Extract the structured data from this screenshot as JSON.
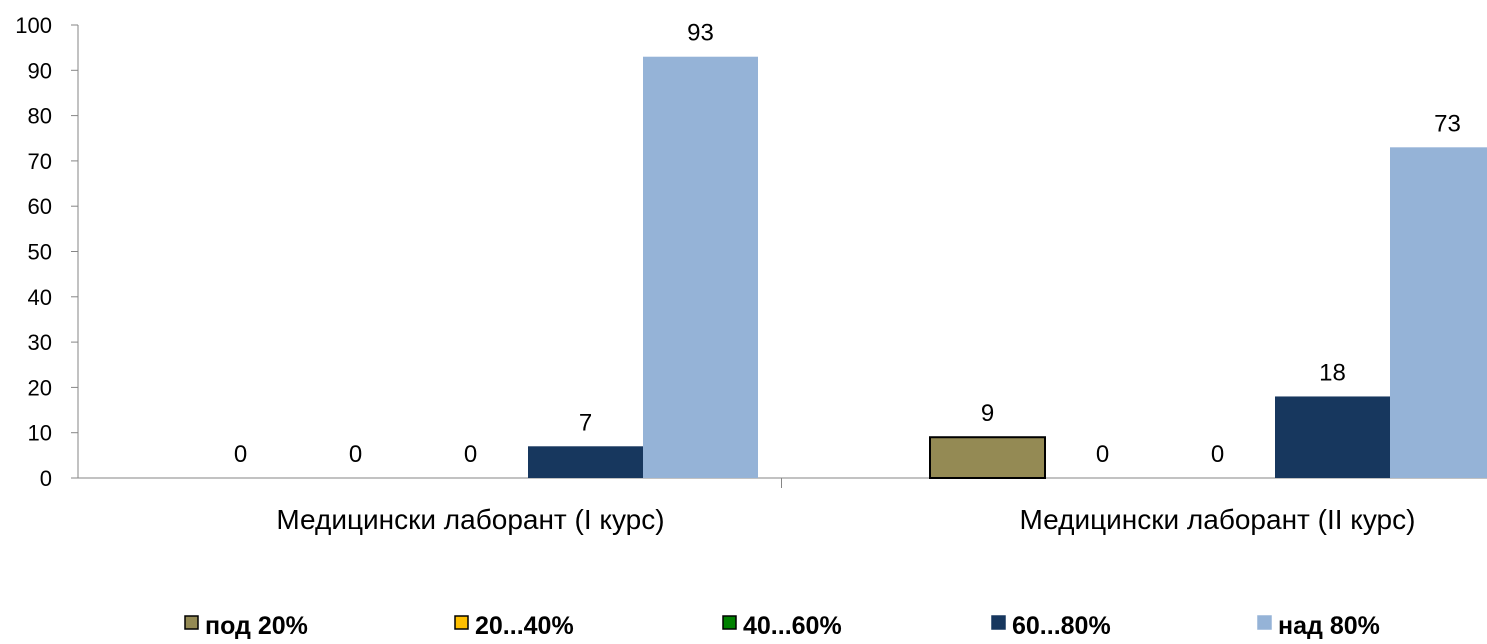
{
  "chart_data": {
    "type": "bar",
    "categories": [
      "Медицински лаборант (I курс)",
      "Медицински лаборант (II курс)"
    ],
    "series": [
      {
        "name": "под 20%",
        "values": [
          0,
          9
        ],
        "color": "#948A54",
        "border": "#000000"
      },
      {
        "name": "20...40%",
        "values": [
          0,
          0
        ],
        "color": "#FFC000",
        "border": "#000000"
      },
      {
        "name": "40...60%",
        "values": [
          0,
          0
        ],
        "color": "#008000",
        "border": "#000000"
      },
      {
        "name": "60...80%",
        "values": [
          7,
          18
        ],
        "color": "#17375E",
        "border": "#17375E"
      },
      {
        "name": "над 80%",
        "values": [
          93,
          73
        ],
        "color": "#95B3D7",
        "border": "#95B3D7"
      }
    ],
    "ylim": [
      0,
      100
    ],
    "yticks": [
      0,
      10,
      20,
      30,
      40,
      50,
      60,
      70,
      80,
      90,
      100
    ],
    "data_labels": true,
    "grid": false,
    "legend": "bottom"
  }
}
